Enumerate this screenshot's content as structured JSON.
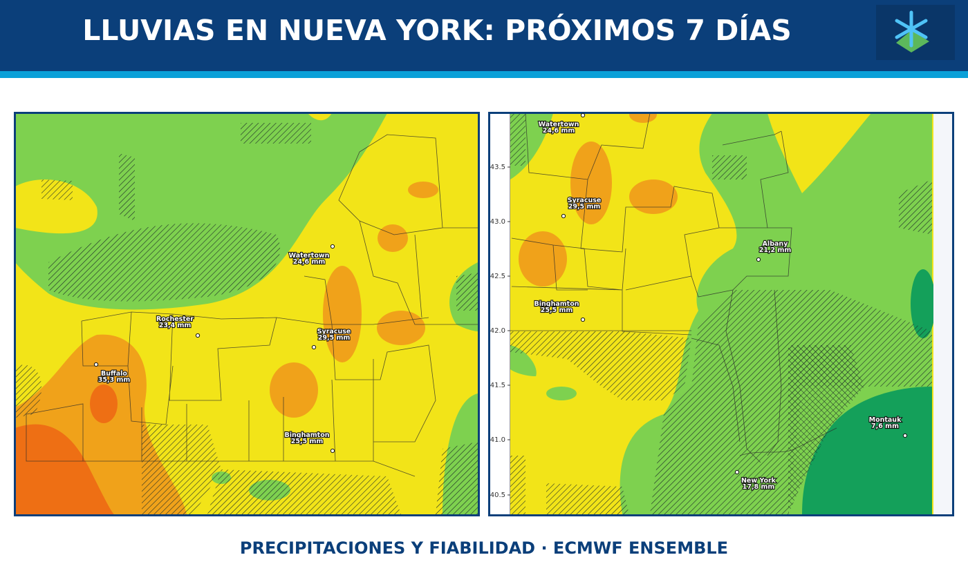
{
  "header": {
    "title": "LLUVIAS EN NUEVA YORK: PRÓXIMOS 7 DÍAS"
  },
  "maps": [
    {
      "cities": [
        {
          "name": "Watertown",
          "label": "24,6 mm"
        },
        {
          "name": "Rochester",
          "label": "23,4 mm"
        },
        {
          "name": "Syracuse",
          "label": "29,5 mm"
        },
        {
          "name": "Buffalo",
          "label": "35,3 mm"
        },
        {
          "name": "Binghamton",
          "label": "25,5 mm"
        }
      ]
    },
    {
      "lat_ticks": [
        "43.5",
        "43.0",
        "42.5",
        "42.0",
        "41.5",
        "41.0",
        "40.5"
      ],
      "cities": [
        {
          "name": "Watertown",
          "label": "24,6 mm"
        },
        {
          "name": "Syracuse",
          "label": "29,5 mm"
        },
        {
          "name": "Albany",
          "label": "21,2 mm"
        },
        {
          "name": "Binghamton",
          "label": "25,5 mm"
        },
        {
          "name": "Montauk",
          "label": "7,6 mm"
        },
        {
          "name": "New York",
          "label": "17,8 mm"
        }
      ]
    }
  ],
  "footer": {
    "text": "PRECIPITACIONES Y FIABILIDAD · ECMWF ENSEMBLE"
  }
}
